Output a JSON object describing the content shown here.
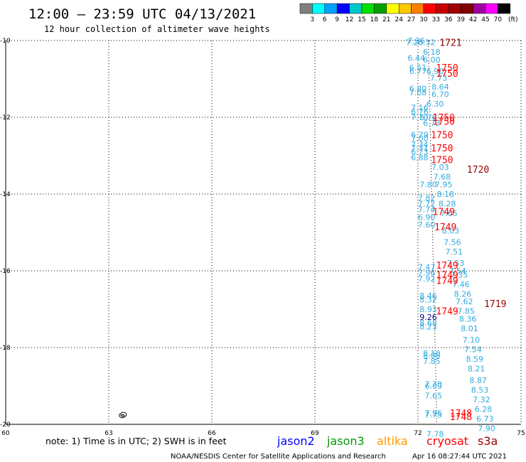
{
  "header": {
    "title": "12:00 – 23:59 UTC 04/13/2021",
    "subtitle": "12 hour collection of altimeter wave heights"
  },
  "colorbar": {
    "labels": [
      "3",
      "6",
      "9",
      "12",
      "15",
      "18",
      "21",
      "24",
      "27",
      "30",
      "33",
      "36",
      "39",
      "42",
      "45",
      "70"
    ],
    "unit": "(ft)",
    "colors": [
      "#808080",
      "#00ffff",
      "#00a0ff",
      "#0000ff",
      "#00c8c8",
      "#00e000",
      "#00a000",
      "#ffff00",
      "#ffc800",
      "#ff8000",
      "#ff0000",
      "#c80000",
      "#a00000",
      "#800000",
      "#a000a0",
      "#ff00ff",
      "#000000"
    ]
  },
  "chart_data": {
    "type": "scatter",
    "title": "12:00 – 23:59 UTC 04/13/2021",
    "xlim": [
      60,
      75
    ],
    "ylim": [
      -20,
      -10
    ],
    "xticks": [
      "60",
      "63",
      "66",
      "69",
      "72",
      "75"
    ],
    "yticks": [
      "-10",
      "-12",
      "-14",
      "-16",
      "-18",
      "-20"
    ],
    "xtick_values": [
      60,
      63,
      66,
      69,
      72,
      75
    ],
    "ytick_values": [
      -10,
      -12,
      -14,
      -16,
      -18,
      -20
    ],
    "grid": true,
    "wave_heights_ft": [
      {
        "x": 71.95,
        "y": -10.0,
        "text": "7.36",
        "color": "#33aadd"
      },
      {
        "x": 71.9,
        "y": -10.05,
        "text": "7.20",
        "color": "#33aadd"
      },
      {
        "x": 72.25,
        "y": -10.05,
        "text": "6.32",
        "color": "#33aadd"
      },
      {
        "x": 72.4,
        "y": -10.3,
        "text": "6.18",
        "color": "#33aadd"
      },
      {
        "x": 71.95,
        "y": -10.45,
        "text": "6.44",
        "color": "#33aadd"
      },
      {
        "x": 72.4,
        "y": -10.5,
        "text": "6.00",
        "color": "#33aadd"
      },
      {
        "x": 72.0,
        "y": -10.7,
        "text": "6.51",
        "color": "#33aadd"
      },
      {
        "x": 72.0,
        "y": -10.8,
        "text": "6.77",
        "color": "#33aadd"
      },
      {
        "x": 72.5,
        "y": -10.8,
        "text": "6.90",
        "color": "#33aadd"
      },
      {
        "x": 72.6,
        "y": -10.97,
        "text": "7.73",
        "color": "#33aadd"
      },
      {
        "x": 72.65,
        "y": -11.2,
        "text": "8.64",
        "color": "#33aadd"
      },
      {
        "x": 72.0,
        "y": -11.25,
        "text": "6.80",
        "color": "#33aadd"
      },
      {
        "x": 72.0,
        "y": -11.35,
        "text": "7.08",
        "color": "#33aadd"
      },
      {
        "x": 72.65,
        "y": -11.4,
        "text": "6.70",
        "color": "#33aadd"
      },
      {
        "x": 72.5,
        "y": -11.65,
        "text": "6.30",
        "color": "#33aadd"
      },
      {
        "x": 72.05,
        "y": -11.75,
        "text": "7.16",
        "color": "#33aadd"
      },
      {
        "x": 72.05,
        "y": -11.85,
        "text": "6.76",
        "color": "#33aadd"
      },
      {
        "x": 72.05,
        "y": -12.0,
        "text": "7.70",
        "color": "#33aadd"
      },
      {
        "x": 72.3,
        "y": -12.0,
        "text": "6.78",
        "color": "#33aadd"
      },
      {
        "x": 72.4,
        "y": -12.15,
        "text": "6.73",
        "color": "#33aadd"
      },
      {
        "x": 72.05,
        "y": -12.45,
        "text": "6.79",
        "color": "#33aadd"
      },
      {
        "x": 72.05,
        "y": -12.55,
        "text": "7.00",
        "color": "#33aadd"
      },
      {
        "x": 72.05,
        "y": -12.7,
        "text": "7.34",
        "color": "#33aadd"
      },
      {
        "x": 72.05,
        "y": -12.8,
        "text": "7.31",
        "color": "#33aadd"
      },
      {
        "x": 72.05,
        "y": -12.9,
        "text": "6.73",
        "color": "#33aadd"
      },
      {
        "x": 72.05,
        "y": -13.05,
        "text": "6.88",
        "color": "#33aadd"
      },
      {
        "x": 72.65,
        "y": -13.3,
        "text": "7.03",
        "color": "#33aadd"
      },
      {
        "x": 72.7,
        "y": -13.55,
        "text": "7.68",
        "color": "#33aadd"
      },
      {
        "x": 72.3,
        "y": -13.75,
        "text": "7.80",
        "color": "#33aadd"
      },
      {
        "x": 72.75,
        "y": -13.75,
        "text": "7.95",
        "color": "#33aadd"
      },
      {
        "x": 72.8,
        "y": -14.0,
        "text": "8.18",
        "color": "#33aadd"
      },
      {
        "x": 72.25,
        "y": -14.1,
        "text": "7.82",
        "color": "#33aadd"
      },
      {
        "x": 72.25,
        "y": -14.25,
        "text": "7.72",
        "color": "#33aadd"
      },
      {
        "x": 72.85,
        "y": -14.25,
        "text": "8.28",
        "color": "#33aadd"
      },
      {
        "x": 72.25,
        "y": -14.4,
        "text": "7.74",
        "color": "#33aadd"
      },
      {
        "x": 72.9,
        "y": -14.5,
        "text": "7.65",
        "color": "#33aadd"
      },
      {
        "x": 72.25,
        "y": -14.6,
        "text": "6.90",
        "color": "#33aadd"
      },
      {
        "x": 72.25,
        "y": -14.8,
        "text": "7.60",
        "color": "#33aadd"
      },
      {
        "x": 72.95,
        "y": -14.95,
        "text": "8.03",
        "color": "#33aadd"
      },
      {
        "x": 73.0,
        "y": -15.25,
        "text": "7.56",
        "color": "#33aadd"
      },
      {
        "x": 73.05,
        "y": -15.5,
        "text": "7.51",
        "color": "#33aadd"
      },
      {
        "x": 73.1,
        "y": -15.8,
        "text": "7.53",
        "color": "#33aadd"
      },
      {
        "x": 72.25,
        "y": -15.9,
        "text": "7.47",
        "color": "#33aadd"
      },
      {
        "x": 73.15,
        "y": -16.0,
        "text": "7.54",
        "color": "#33aadd"
      },
      {
        "x": 72.25,
        "y": -16.05,
        "text": "7.96",
        "color": "#33aadd"
      },
      {
        "x": 72.25,
        "y": -16.2,
        "text": "7.92",
        "color": "#33aadd"
      },
      {
        "x": 73.2,
        "y": -16.1,
        "text": "7.35",
        "color": "#33aadd"
      },
      {
        "x": 73.25,
        "y": -16.35,
        "text": "7.46",
        "color": "#33aadd"
      },
      {
        "x": 73.3,
        "y": -16.6,
        "text": "8.26",
        "color": "#33aadd"
      },
      {
        "x": 72.3,
        "y": -16.65,
        "text": "8.46",
        "color": "#33aadd"
      },
      {
        "x": 72.3,
        "y": -16.75,
        "text": "8.32",
        "color": "#33aadd"
      },
      {
        "x": 73.35,
        "y": -16.8,
        "text": "7.62",
        "color": "#33aadd"
      },
      {
        "x": 72.3,
        "y": -17.0,
        "text": "8.93",
        "color": "#33aadd"
      },
      {
        "x": 73.4,
        "y": -17.05,
        "text": "7.85",
        "color": "#33aadd"
      },
      {
        "x": 72.3,
        "y": -17.2,
        "text": "9.26",
        "color": "#000080"
      },
      {
        "x": 73.45,
        "y": -17.25,
        "text": "8.36",
        "color": "#33aadd"
      },
      {
        "x": 72.3,
        "y": -17.35,
        "text": "8.68",
        "color": "#33aadd"
      },
      {
        "x": 72.3,
        "y": -17.45,
        "text": "8.23",
        "color": "#33aadd"
      },
      {
        "x": 73.5,
        "y": -17.5,
        "text": "8.01",
        "color": "#33aadd"
      },
      {
        "x": 73.55,
        "y": -17.8,
        "text": "7.10",
        "color": "#33aadd"
      },
      {
        "x": 73.6,
        "y": -18.05,
        "text": "7.54",
        "color": "#33aadd"
      },
      {
        "x": 72.4,
        "y": -18.15,
        "text": "8.10",
        "color": "#33aadd"
      },
      {
        "x": 72.4,
        "y": -18.2,
        "text": "8.06",
        "color": "#33aadd"
      },
      {
        "x": 73.65,
        "y": -18.3,
        "text": "8.59",
        "color": "#33aadd"
      },
      {
        "x": 72.4,
        "y": -18.35,
        "text": "7.85",
        "color": "#33aadd"
      },
      {
        "x": 73.7,
        "y": -18.55,
        "text": "8.21",
        "color": "#33aadd"
      },
      {
        "x": 73.75,
        "y": -18.85,
        "text": "8.87",
        "color": "#33aadd"
      },
      {
        "x": 72.45,
        "y": -18.95,
        "text": "7.70",
        "color": "#33aadd"
      },
      {
        "x": 72.45,
        "y": -19.0,
        "text": "6.09",
        "color": "#33aadd"
      },
      {
        "x": 73.8,
        "y": -19.1,
        "text": "8.53",
        "color": "#33aadd"
      },
      {
        "x": 72.45,
        "y": -19.25,
        "text": "7.65",
        "color": "#33aadd"
      },
      {
        "x": 73.85,
        "y": -19.35,
        "text": "7.32",
        "color": "#33aadd"
      },
      {
        "x": 73.9,
        "y": -19.6,
        "text": "6.28",
        "color": "#33aadd"
      },
      {
        "x": 72.45,
        "y": -19.7,
        "text": "7.96",
        "color": "#33aadd"
      },
      {
        "x": 72.45,
        "y": -19.75,
        "text": "7.75",
        "color": "#33aadd"
      },
      {
        "x": 73.95,
        "y": -19.85,
        "text": "6.73",
        "color": "#33aadd"
      },
      {
        "x": 74.0,
        "y": -20.1,
        "text": "7.90",
        "color": "#33aadd"
      },
      {
        "x": 72.5,
        "y": -20.25,
        "text": "7.78",
        "color": "#33aadd"
      }
    ],
    "times_utc": [
      {
        "x": 72.95,
        "y": -10.05,
        "text": "1721",
        "color": "#990000"
      },
      {
        "x": 72.85,
        "y": -10.7,
        "text": "1750",
        "color": "#ff0000"
      },
      {
        "x": 72.85,
        "y": -10.85,
        "text": "1750",
        "color": "#ff0000"
      },
      {
        "x": 72.75,
        "y": -12.0,
        "text": "1750",
        "color": "#ff0000"
      },
      {
        "x": 72.75,
        "y": -12.1,
        "text": "1750",
        "color": "#ff0000"
      },
      {
        "x": 72.7,
        "y": -12.45,
        "text": "1750",
        "color": "#ff0000"
      },
      {
        "x": 72.7,
        "y": -12.8,
        "text": "1750",
        "color": "#ff0000"
      },
      {
        "x": 72.7,
        "y": -13.1,
        "text": "1750",
        "color": "#ff0000"
      },
      {
        "x": 73.75,
        "y": -13.35,
        "text": "1720",
        "color": "#990000"
      },
      {
        "x": 72.75,
        "y": -14.45,
        "text": "1749",
        "color": "#ff0000"
      },
      {
        "x": 72.8,
        "y": -14.85,
        "text": "1749",
        "color": "#ff0000"
      },
      {
        "x": 72.85,
        "y": -15.85,
        "text": "1749",
        "color": "#ff0000"
      },
      {
        "x": 72.85,
        "y": -16.1,
        "text": "1749",
        "color": "#ff0000"
      },
      {
        "x": 72.85,
        "y": -16.25,
        "text": "1749",
        "color": "#ff0000"
      },
      {
        "x": 74.25,
        "y": -16.85,
        "text": "1719",
        "color": "#990000"
      },
      {
        "x": 72.85,
        "y": -17.05,
        "text": "1749",
        "color": "#ff0000"
      },
      {
        "x": 73.25,
        "y": -19.7,
        "text": "1748",
        "color": "#ff0000"
      },
      {
        "x": 73.25,
        "y": -19.8,
        "text": "1748",
        "color": "#ff0000"
      }
    ]
  },
  "footer": {
    "note": "note: 1) Time is in UTC; 2) SWH is in feet",
    "missions": [
      {
        "name": "jason2",
        "color": "#0000ff"
      },
      {
        "name": "jason3",
        "color": "#009900"
      },
      {
        "name": "altika",
        "color": "#ff9900"
      },
      {
        "name": "cryosat",
        "color": "#ff0000"
      },
      {
        "name": "s3a",
        "color": "#990000"
      }
    ],
    "credit": "NOAA/NESDIS Center for Satellite Applications and Research",
    "generated": "Apr 16 08:27:44 UTC 2021"
  }
}
